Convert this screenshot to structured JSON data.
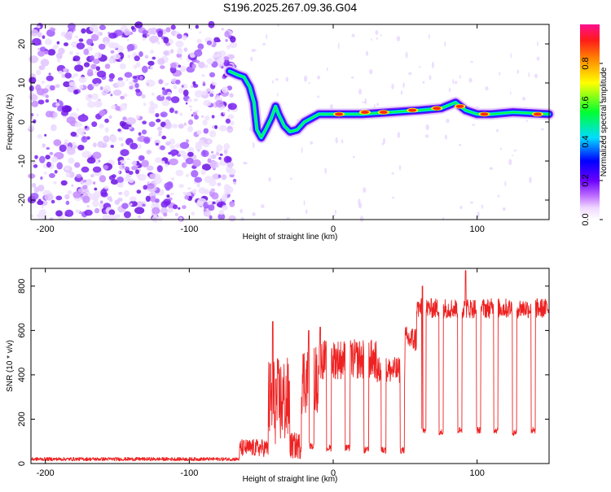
{
  "title": "S196.2025.267.09.36.G04",
  "chart_data": [
    {
      "type": "heatmap",
      "title": "S196.2025.267.09.36.G04",
      "xlabel": "Height of straight line (km)",
      "ylabel": "Frequency (Hz)",
      "xlim": [
        -210,
        150
      ],
      "ylim": [
        -25,
        25
      ],
      "xticks": [
        -200,
        -100,
        0,
        100
      ],
      "yticks": [
        -20,
        -10,
        0,
        10,
        20
      ],
      "grid": false,
      "colorbar": {
        "label": "Normalized spectral amplitude",
        "range": [
          0,
          1
        ],
        "ticks": [
          0.0,
          0.2,
          0.4,
          0.6,
          0.8
        ],
        "tick_labels": [
          "0.0",
          "0.2",
          "0.4",
          "0.6",
          "0.8"
        ],
        "colormap": "rainbow (white→magenta→blue→cyan→green→yellow→orange→red)"
      },
      "noise_region_x": [
        -210,
        -68
      ],
      "ridge": [
        {
          "x": -72,
          "y": 13
        },
        {
          "x": -66,
          "y": 12
        },
        {
          "x": -62,
          "y": 11.5
        },
        {
          "x": -58,
          "y": 9
        },
        {
          "x": -55,
          "y": 5
        },
        {
          "x": -53,
          "y": -2
        },
        {
          "x": -50,
          "y": -4
        },
        {
          "x": -47,
          "y": -2
        },
        {
          "x": -43,
          "y": 1
        },
        {
          "x": -40,
          "y": 4
        },
        {
          "x": -38,
          "y": 2
        },
        {
          "x": -34,
          "y": -1
        },
        {
          "x": -30,
          "y": -2.5
        },
        {
          "x": -25,
          "y": -2
        },
        {
          "x": -20,
          "y": 0
        },
        {
          "x": -15,
          "y": 1
        },
        {
          "x": -10,
          "y": 2
        },
        {
          "x": 0,
          "y": 2
        },
        {
          "x": 20,
          "y": 2
        },
        {
          "x": 40,
          "y": 2.5
        },
        {
          "x": 60,
          "y": 3
        },
        {
          "x": 75,
          "y": 3.5
        },
        {
          "x": 85,
          "y": 5
        },
        {
          "x": 92,
          "y": 3
        },
        {
          "x": 100,
          "y": 2
        },
        {
          "x": 110,
          "y": 2
        },
        {
          "x": 125,
          "y": 2.5
        },
        {
          "x": 150,
          "y": 2
        }
      ],
      "hot_spots": [
        {
          "x": 4,
          "y": 2
        },
        {
          "x": 22,
          "y": 2.5
        },
        {
          "x": 35,
          "y": 2.5
        },
        {
          "x": 55,
          "y": 3
        },
        {
          "x": 72,
          "y": 3.5
        },
        {
          "x": 88,
          "y": 4
        },
        {
          "x": 105,
          "y": 2
        },
        {
          "x": 142,
          "y": 2
        }
      ]
    },
    {
      "type": "line",
      "xlabel": "Height of straight line (km)",
      "ylabel": "SNR (10 * v/v)",
      "xlim": [
        -210,
        150
      ],
      "ylim": [
        0,
        880
      ],
      "xticks": [
        -200,
        -100,
        0,
        100
      ],
      "yticks": [
        0,
        200,
        400,
        600,
        800
      ],
      "grid": false,
      "series": [
        {
          "color": "#ee2222",
          "segments": [
            {
              "x0": -210,
              "x1": -65,
              "level": 20,
              "jitter": 8
            },
            {
              "x0": -65,
              "x1": -45,
              "level": 70,
              "jitter": 40
            },
            {
              "x0": -45,
              "x1": -30,
              "level": 280,
              "jitter": 200
            },
            {
              "x0": -30,
              "x1": -22,
              "level": 80,
              "jitter": 60
            },
            {
              "x0": -22,
              "x1": -10,
              "level": 380,
              "jitter": 160
            },
            {
              "x0": -10,
              "x1": 30,
              "level": 470,
              "jitter": 90
            },
            {
              "x0": 30,
              "x1": 50,
              "level": 420,
              "jitter": 60
            },
            {
              "x0": 50,
              "x1": 58,
              "level": 560,
              "jitter": 60
            },
            {
              "x0": 58,
              "x1": 150,
              "level": 700,
              "jitter": 45
            }
          ],
          "dips": [
            {
              "x": -15,
              "value": 80
            },
            {
              "x": -3,
              "value": 70
            },
            {
              "x": 10,
              "value": 70
            },
            {
              "x": 23,
              "value": 60
            },
            {
              "x": 35,
              "value": 60
            },
            {
              "x": 48,
              "value": 60
            },
            {
              "x": 63,
              "value": 150
            },
            {
              "x": 75,
              "value": 140
            },
            {
              "x": 88,
              "value": 150
            },
            {
              "x": 101,
              "value": 150
            },
            {
              "x": 113,
              "value": 150
            },
            {
              "x": 126,
              "value": 140
            },
            {
              "x": 139,
              "value": 150
            }
          ],
          "peaks": [
            {
              "x": -42,
              "value": 640
            },
            {
              "x": -17,
              "value": 600
            },
            {
              "x": -9,
              "value": 615
            },
            {
              "x": 92,
              "value": 870
            },
            {
              "x": 62,
              "value": 800
            }
          ]
        }
      ]
    }
  ]
}
